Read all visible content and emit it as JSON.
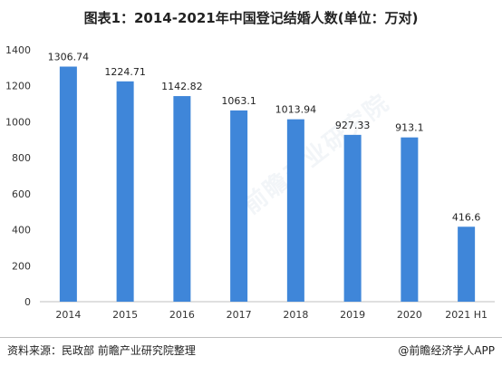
{
  "title": "图表1：2014-2021年中国登记结婚人数(单位：万对)",
  "source": "资料来源：民政部 前瞻产业研究院整理",
  "credit": "@前瞻经济学人APP",
  "watermark": "前瞻产业研究院",
  "colors": {
    "bar": "#3f86d9",
    "axis": "#bfbfbf"
  },
  "chart_data": {
    "type": "bar",
    "categories": [
      "2014",
      "2015",
      "2016",
      "2017",
      "2018",
      "2019",
      "2020",
      "2021 H1"
    ],
    "values": [
      1306.74,
      1224.71,
      1142.82,
      1063.1,
      1013.94,
      927.33,
      913.1,
      416.6
    ],
    "value_labels": [
      "1306.74",
      "1224.71",
      "1142.82",
      "1063.1",
      "1013.94",
      "927.33",
      "913.1",
      "416.6"
    ],
    "yticks": [
      "0",
      "200",
      "400",
      "600",
      "800",
      "1000",
      "1200",
      "1400"
    ],
    "ylim": [
      0,
      1400
    ],
    "grid": false,
    "legend": "none"
  }
}
